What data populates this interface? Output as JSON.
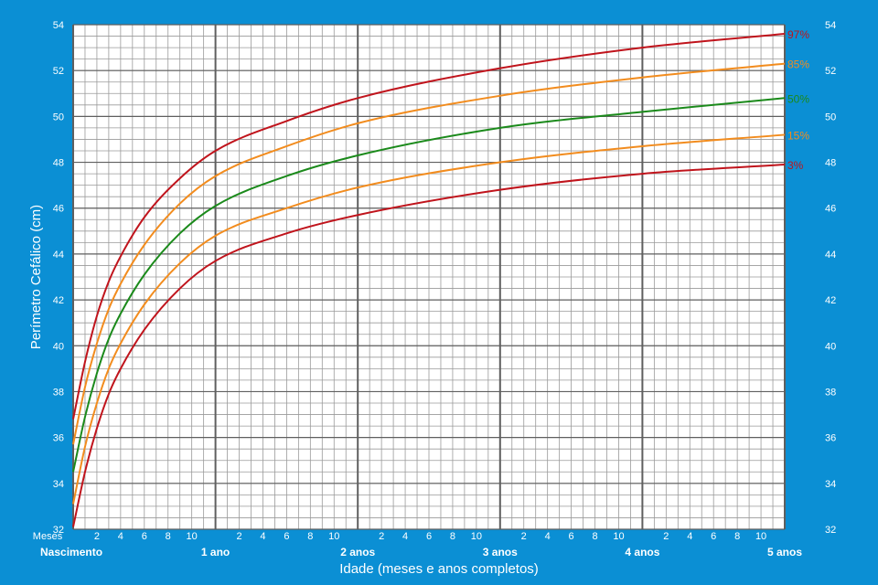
{
  "chart_data": {
    "type": "line",
    "ylabel": "Perímetro Cefálico (cm)",
    "xlabel": "Idade (meses e anos completos)",
    "ylim": [
      32,
      54
    ],
    "xlim": [
      0,
      60
    ],
    "y_ticks": [
      32,
      34,
      36,
      38,
      40,
      42,
      44,
      46,
      48,
      50,
      52,
      54
    ],
    "month_ticks_prefix": "Meses",
    "month_tick_labels": [
      "2",
      "4",
      "6",
      "8",
      "10"
    ],
    "year_labels": [
      "Nascimento",
      "1 ano",
      "2 anos",
      "3 anos",
      "4 anos",
      "5 anos"
    ],
    "grid": true,
    "series": [
      {
        "name": "97%",
        "color": "#c0141c",
        "x": [
          0,
          1,
          2,
          3,
          4,
          6,
          9,
          12,
          18,
          24,
          36,
          48,
          60
        ],
        "values": [
          36.8,
          39.3,
          41.3,
          42.8,
          43.9,
          45.6,
          47.3,
          48.5,
          49.8,
          50.8,
          52.1,
          53.0,
          53.6
        ]
      },
      {
        "name": "85%",
        "color": "#f28c1e",
        "x": [
          0,
          1,
          2,
          3,
          4,
          6,
          9,
          12,
          18,
          24,
          36,
          48,
          60
        ],
        "values": [
          35.7,
          38.2,
          40.1,
          41.6,
          42.7,
          44.4,
          46.2,
          47.4,
          48.7,
          49.7,
          50.9,
          51.7,
          52.3
        ]
      },
      {
        "name": "50%",
        "color": "#1b8a1b",
        "x": [
          0,
          1,
          2,
          3,
          4,
          6,
          9,
          12,
          18,
          24,
          36,
          48,
          60
        ],
        "values": [
          34.5,
          36.9,
          38.8,
          40.3,
          41.4,
          43.1,
          44.9,
          46.1,
          47.4,
          48.3,
          49.5,
          50.2,
          50.8
        ]
      },
      {
        "name": "15%",
        "color": "#f28c1e",
        "x": [
          0,
          1,
          2,
          3,
          4,
          6,
          9,
          12,
          18,
          24,
          36,
          48,
          60
        ],
        "values": [
          33.1,
          35.6,
          37.5,
          39.0,
          40.1,
          41.8,
          43.6,
          44.8,
          46.0,
          46.9,
          48.0,
          48.7,
          49.2
        ]
      },
      {
        "name": "3%",
        "color": "#c0141c",
        "x": [
          0,
          1,
          2,
          3,
          4,
          6,
          9,
          12,
          18,
          24,
          36,
          48,
          60
        ],
        "values": [
          32.1,
          34.5,
          36.4,
          37.9,
          39.0,
          40.7,
          42.5,
          43.7,
          44.9,
          45.7,
          46.8,
          47.5,
          47.9
        ]
      }
    ]
  },
  "colors": {
    "frame": "#0b8fd4",
    "plot_bg": "#ffffff",
    "minor_grid": "#9a9a9a",
    "major_grid": "#5f5f5f",
    "text": "#ffffff",
    "label_text": "#1a1a1a"
  }
}
